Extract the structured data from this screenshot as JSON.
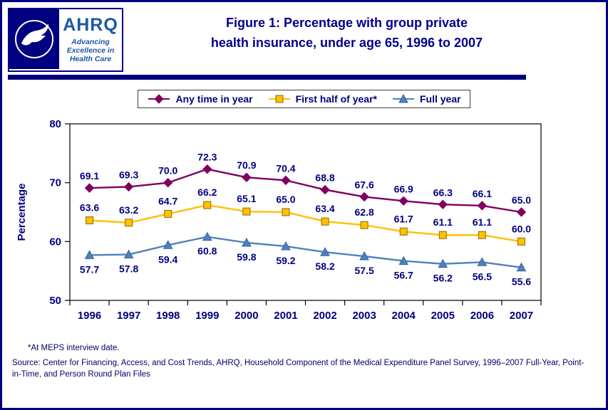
{
  "header": {
    "title_lines": [
      "Figure 1: Percentage with group private",
      "health insurance, under age 65, 1996 to 2007"
    ],
    "hhs_logo": "hhs-eagle-seal",
    "ahrq_logo": {
      "name": "AHRQ",
      "tagline": "Advancing Excellence in Health Care"
    }
  },
  "colors": {
    "navy_text": "#000080",
    "title_navy": "#00008B",
    "logo_blue": "#1C57A5",
    "plot_border": "#000000",
    "series_any_time": "#800060",
    "series_first_half": "#FFC000",
    "series_first_half_edge": "#8a6d00",
    "series_full_year": "#4F81BD"
  },
  "chart_data": {
    "type": "line",
    "title": "Figure 1: Percentage with group private health insurance, under age 65, 1996 to 2007",
    "categories": [
      "1996",
      "1997",
      "1998",
      "1999",
      "2000",
      "2001",
      "2002",
      "2003",
      "2004",
      "2005",
      "2006",
      "2007"
    ],
    "series": [
      {
        "name": "Any time in year",
        "marker": "diamond",
        "color": "#800060",
        "edge": "#800060",
        "label_offset": -12,
        "values": [
          69.1,
          69.3,
          70.0,
          72.3,
          70.9,
          70.4,
          68.8,
          67.6,
          66.9,
          66.3,
          66.1,
          65.0
        ]
      },
      {
        "name": "First half of year*",
        "marker": "square",
        "color": "#FFC000",
        "edge": "#8a6d00",
        "label_offset": -13,
        "values": [
          63.6,
          63.2,
          64.7,
          66.2,
          65.1,
          65.0,
          63.4,
          62.8,
          61.7,
          61.1,
          61.1,
          60.0
        ]
      },
      {
        "name": "Full year",
        "marker": "triangle",
        "color": "#4F81BD",
        "edge": "#36629e",
        "label_offset": 25,
        "values": [
          57.7,
          57.8,
          59.4,
          60.8,
          59.8,
          59.2,
          58.2,
          57.5,
          56.7,
          56.2,
          56.5,
          55.6
        ]
      }
    ],
    "xlabel": "",
    "ylabel": "Percentage",
    "ylim": [
      50,
      80
    ],
    "yticks": [
      50,
      60,
      70,
      80
    ],
    "grid": false,
    "legend_position": "top",
    "data_labels": true
  },
  "footnotes": {
    "asterisk": "*At MEPS interview date.",
    "source": "Source: Center for Financing, Access, and Cost Trends, AHRQ, Household Component of the Medical Expenditure Panel Survey, 1996–2007 Full-Year, Point-in-Time, and Person Round Plan Files"
  }
}
